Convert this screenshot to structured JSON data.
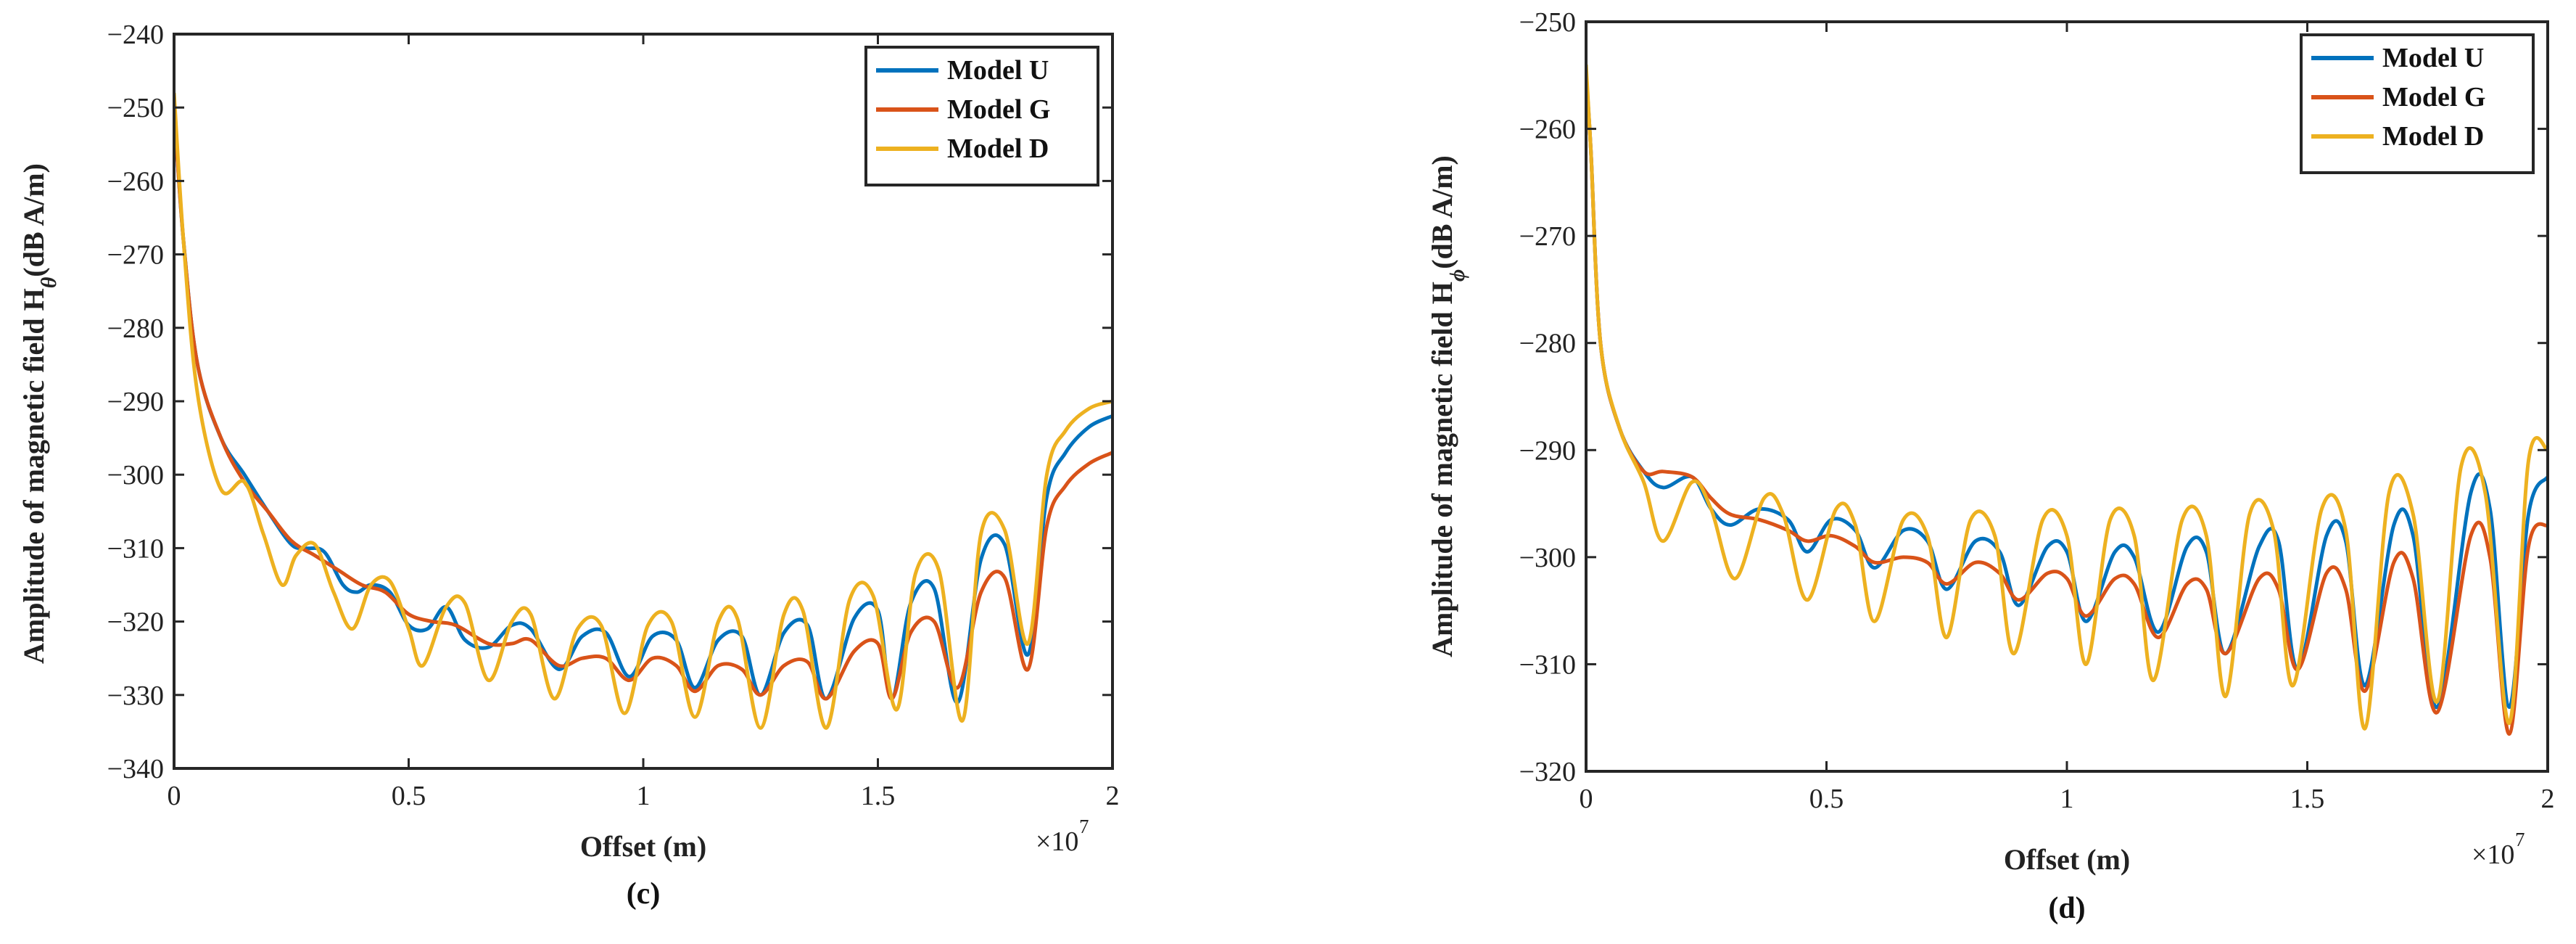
{
  "chart_data": [
    {
      "type": "line",
      "panel": "left",
      "caption": "(c)",
      "xlabel": "Offset (m)",
      "ylabel_prefix": "Amplitude of magnetic field H",
      "ylabel_sub": "θ",
      "ylabel_suffix": "(dB A/m)",
      "x_multiplier": "×10",
      "x_multiplier_exp": "7",
      "xlim": [
        0,
        2
      ],
      "ylim": [
        -340,
        -240
      ],
      "xticks": [
        0,
        0.5,
        1,
        1.5,
        2
      ],
      "xtick_labels": [
        "0",
        "0.5",
        "1",
        "1.5",
        "2"
      ],
      "yticks": [
        -340,
        -330,
        -320,
        -310,
        -300,
        -290,
        -280,
        -270,
        -260,
        -250,
        -240
      ],
      "ytick_labels": [
        "−340",
        "−330",
        "−320",
        "−310",
        "−300",
        "−290",
        "−280",
        "−270",
        "−260",
        "−250",
        "−240"
      ],
      "legend_position": "top-right",
      "series": [
        {
          "name": "Model U",
          "color": "#0072BD",
          "x": [
            0,
            0.02,
            0.05,
            0.1,
            0.15,
            0.2,
            0.25,
            0.28,
            0.32,
            0.36,
            0.39,
            0.42,
            0.46,
            0.5,
            0.54,
            0.58,
            0.62,
            0.67,
            0.72,
            0.76,
            0.82,
            0.87,
            0.92,
            0.97,
            1.02,
            1.07,
            1.11,
            1.16,
            1.21,
            1.25,
            1.3,
            1.35,
            1.39,
            1.45,
            1.5,
            1.53,
            1.57,
            1.62,
            1.67,
            1.72,
            1.77,
            1.82,
            1.86,
            1.9,
            1.95,
            2.0
          ],
          "values": [
            -250,
            -268,
            -285,
            -295,
            -300,
            -305,
            -309.5,
            -310,
            -310.5,
            -315,
            -316,
            -315,
            -316,
            -320.5,
            -321,
            -318,
            -322.5,
            -323.5,
            -320.5,
            -321,
            -326.5,
            -322,
            -321.5,
            -327.5,
            -322,
            -322.5,
            -329,
            -322.5,
            -322,
            -330,
            -321.5,
            -320.5,
            -330.5,
            -319.5,
            -318.5,
            -330.5,
            -317.5,
            -315.5,
            -331,
            -311.5,
            -309.5,
            -324.5,
            -303,
            -297,
            -293.5,
            -292
          ]
        },
        {
          "name": "Model G",
          "color": "#D95319",
          "x": [
            0,
            0.02,
            0.05,
            0.1,
            0.15,
            0.2,
            0.25,
            0.3,
            0.35,
            0.4,
            0.45,
            0.5,
            0.55,
            0.6,
            0.67,
            0.72,
            0.76,
            0.82,
            0.87,
            0.92,
            0.97,
            1.02,
            1.07,
            1.11,
            1.16,
            1.21,
            1.25,
            1.3,
            1.35,
            1.39,
            1.45,
            1.5,
            1.53,
            1.57,
            1.62,
            1.67,
            1.72,
            1.77,
            1.82,
            1.86,
            1.9,
            1.95,
            2.0
          ],
          "values": [
            -250,
            -268,
            -285,
            -295,
            -301,
            -305,
            -309,
            -311,
            -313,
            -315,
            -316,
            -319,
            -320,
            -320.5,
            -323,
            -323,
            -322.5,
            -326,
            -325,
            -325,
            -328,
            -325,
            -326,
            -329.5,
            -326,
            -326.5,
            -330,
            -326,
            -325.5,
            -330.5,
            -324,
            -323,
            -330.5,
            -321.5,
            -320,
            -329,
            -316,
            -314,
            -326.5,
            -307,
            -301.5,
            -298.5,
            -297
          ]
        },
        {
          "name": "Model D",
          "color": "#EDB120",
          "x": [
            0,
            0.02,
            0.05,
            0.1,
            0.15,
            0.19,
            0.23,
            0.26,
            0.3,
            0.34,
            0.38,
            0.42,
            0.46,
            0.5,
            0.53,
            0.58,
            0.62,
            0.67,
            0.72,
            0.76,
            0.81,
            0.86,
            0.91,
            0.96,
            1.01,
            1.06,
            1.11,
            1.16,
            1.2,
            1.25,
            1.3,
            1.34,
            1.39,
            1.44,
            1.49,
            1.54,
            1.58,
            1.63,
            1.68,
            1.72,
            1.77,
            1.82,
            1.86,
            1.9,
            1.95,
            2.0
          ],
          "values": [
            -248,
            -268,
            -289,
            -302,
            -301,
            -308,
            -315,
            -311,
            -309.5,
            -316,
            -321,
            -315,
            -314.5,
            -321,
            -326,
            -318,
            -317.5,
            -328,
            -320,
            -319,
            -330.5,
            -321,
            -320.5,
            -332.5,
            -320.5,
            -320,
            -333,
            -320,
            -319.5,
            -334.5,
            -319,
            -318.5,
            -334.5,
            -317,
            -316.5,
            -332,
            -313.5,
            -313,
            -333.5,
            -308,
            -307.5,
            -323,
            -300,
            -294,
            -291,
            -290
          ]
        }
      ]
    },
    {
      "type": "line",
      "panel": "right",
      "caption": "(d)",
      "xlabel": "Offset (m)",
      "ylabel_prefix": "Amplitude of magnetic field H",
      "ylabel_sub": "ϕ",
      "ylabel_suffix": "(dB A/m)",
      "x_multiplier": "×10",
      "x_multiplier_exp": "7",
      "xlim": [
        0,
        2
      ],
      "ylim": [
        -320,
        -250
      ],
      "xticks": [
        0,
        0.5,
        1,
        1.5,
        2
      ],
      "xtick_labels": [
        "0",
        "0.5",
        "1",
        "1.5",
        "2"
      ],
      "yticks": [
        -320,
        -310,
        -300,
        -290,
        -280,
        -270,
        -260,
        -250
      ],
      "ytick_labels": [
        "−320",
        "−310",
        "−300",
        "−290",
        "−280",
        "−270",
        "−260",
        "−250"
      ],
      "legend_position": "top-right",
      "series": [
        {
          "name": "Model U",
          "color": "#0072BD",
          "x": [
            0,
            0.01,
            0.03,
            0.07,
            0.12,
            0.16,
            0.22,
            0.26,
            0.3,
            0.36,
            0.42,
            0.46,
            0.51,
            0.56,
            0.6,
            0.66,
            0.71,
            0.75,
            0.81,
            0.86,
            0.9,
            0.96,
            1.0,
            1.04,
            1.1,
            1.14,
            1.19,
            1.25,
            1.29,
            1.33,
            1.4,
            1.44,
            1.48,
            1.54,
            1.58,
            1.62,
            1.68,
            1.72,
            1.77,
            1.84,
            1.88,
            1.92,
            1.96,
            2.0
          ],
          "values": [
            -255,
            -262,
            -280,
            -288,
            -292,
            -293.5,
            -292.5,
            -295.5,
            -297,
            -295.5,
            -296.5,
            -299.5,
            -296.5,
            -297.5,
            -301,
            -297.5,
            -298.5,
            -303,
            -298.5,
            -299.5,
            -304.5,
            -299,
            -299.5,
            -306,
            -299.5,
            -300,
            -307,
            -299,
            -299.5,
            -309,
            -299,
            -298.5,
            -310.5,
            -298,
            -298.5,
            -312,
            -297,
            -298,
            -314,
            -294,
            -295.5,
            -314,
            -296,
            -292.5
          ]
        },
        {
          "name": "Model G",
          "color": "#D95319",
          "x": [
            0,
            0.01,
            0.03,
            0.07,
            0.12,
            0.16,
            0.22,
            0.26,
            0.3,
            0.36,
            0.42,
            0.46,
            0.51,
            0.56,
            0.6,
            0.66,
            0.71,
            0.75,
            0.81,
            0.86,
            0.9,
            0.96,
            1.0,
            1.04,
            1.1,
            1.14,
            1.19,
            1.25,
            1.29,
            1.33,
            1.4,
            1.44,
            1.48,
            1.54,
            1.58,
            1.62,
            1.68,
            1.72,
            1.77,
            1.84,
            1.88,
            1.92,
            1.96,
            2.0
          ],
          "values": [
            -255,
            -262,
            -280,
            -288,
            -292,
            -292,
            -292.5,
            -294.5,
            -296,
            -296.5,
            -297.5,
            -298.5,
            -298,
            -299,
            -300.5,
            -300,
            -300.5,
            -302.5,
            -300.5,
            -301.5,
            -304,
            -301.5,
            -302,
            -305.5,
            -302,
            -302.5,
            -307.5,
            -302.5,
            -303,
            -309,
            -302,
            -303,
            -310.5,
            -301.5,
            -303,
            -312.5,
            -300.5,
            -302,
            -314.5,
            -298,
            -300,
            -316.5,
            -299,
            -297
          ]
        },
        {
          "name": "Model D",
          "color": "#EDB120",
          "x": [
            0,
            0.01,
            0.03,
            0.07,
            0.12,
            0.16,
            0.22,
            0.26,
            0.31,
            0.37,
            0.41,
            0.46,
            0.52,
            0.56,
            0.6,
            0.66,
            0.71,
            0.75,
            0.8,
            0.85,
            0.89,
            0.95,
            1.0,
            1.04,
            1.09,
            1.14,
            1.18,
            1.24,
            1.29,
            1.33,
            1.38,
            1.43,
            1.47,
            1.53,
            1.58,
            1.62,
            1.67,
            1.72,
            1.77,
            1.82,
            1.87,
            1.92,
            1.96,
            2.0
          ],
          "values": [
            -254,
            -262,
            -280,
            -288,
            -293,
            -298.5,
            -293,
            -295.5,
            -302,
            -294.5,
            -296,
            -304,
            -295.5,
            -297,
            -306,
            -296.5,
            -298,
            -307.5,
            -296.5,
            -298,
            -309,
            -296.5,
            -298,
            -310,
            -296.5,
            -298,
            -311.5,
            -296.5,
            -298,
            -313,
            -296,
            -297.5,
            -312,
            -295.5,
            -297.5,
            -316,
            -294,
            -296,
            -313.5,
            -291.5,
            -294,
            -315.5,
            -291,
            -290
          ]
        }
      ]
    }
  ]
}
